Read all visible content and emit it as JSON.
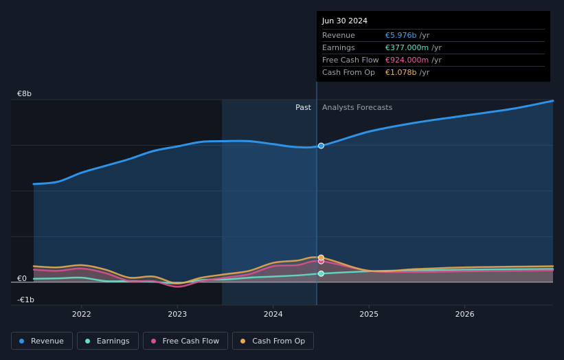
{
  "tooltip": {
    "date": "Jun 30 2024",
    "rows": [
      {
        "label": "Revenue",
        "value": "€5.976b",
        "unit": "/yr",
        "color": "#4aa3f0"
      },
      {
        "label": "Earnings",
        "value": "€377.000m",
        "unit": "/yr",
        "color": "#5fe0c8"
      },
      {
        "label": "Free Cash Flow",
        "value": "€924.000m",
        "unit": "/yr",
        "color": "#ef5fa0"
      },
      {
        "label": "Cash From Op",
        "value": "€1.078b",
        "unit": "/yr",
        "color": "#f2b45e"
      }
    ]
  },
  "labels": {
    "past": "Past",
    "forecast": "Analysts Forecasts"
  },
  "legend": [
    {
      "label": "Revenue",
      "color": "#2e93e6"
    },
    {
      "label": "Earnings",
      "color": "#5fe0c8"
    },
    {
      "label": "Free Cash Flow",
      "color": "#d9508f"
    },
    {
      "label": "Cash From Op",
      "color": "#e9a74f"
    }
  ],
  "chart_data": {
    "type": "line",
    "title": "",
    "xlabel": "",
    "ylabel": "",
    "ylim": [
      -1,
      8
    ],
    "y_ticks": [
      {
        "v": 8,
        "label": "€8b"
      },
      {
        "v": 0,
        "label": "€0"
      },
      {
        "v": -1,
        "label": "-€1b"
      }
    ],
    "x_ticks": [
      {
        "v": 2022,
        "label": "2022"
      },
      {
        "v": 2023,
        "label": "2023"
      },
      {
        "v": 2024,
        "label": "2024"
      },
      {
        "v": 2025,
        "label": "2025"
      },
      {
        "v": 2026,
        "label": "2026"
      }
    ],
    "xlim": [
      2021.25,
      2026.92
    ],
    "past_start": 2023.5,
    "current": 2024.5,
    "series": [
      {
        "name": "Revenue",
        "color": "#2e93e6",
        "x": [
          2021.5,
          2021.75,
          2022.0,
          2022.25,
          2022.5,
          2022.75,
          2023.0,
          2023.25,
          2023.5,
          2023.75,
          2024.0,
          2024.25,
          2024.5,
          2025.0,
          2025.5,
          2026.0,
          2026.5,
          2026.92
        ],
        "y": [
          4.3,
          4.4,
          4.8,
          5.1,
          5.4,
          5.75,
          5.95,
          6.15,
          6.18,
          6.18,
          6.05,
          5.92,
          5.98,
          6.6,
          7.0,
          7.3,
          7.6,
          7.95
        ]
      },
      {
        "name": "Earnings",
        "color": "#5fe0c8",
        "x": [
          2021.5,
          2021.75,
          2022.0,
          2022.25,
          2022.5,
          2022.75,
          2023.0,
          2023.25,
          2023.5,
          2023.75,
          2024.0,
          2024.25,
          2024.5,
          2025.0,
          2025.5,
          2026.0,
          2026.5,
          2026.92
        ],
        "y": [
          0.15,
          0.17,
          0.2,
          0.05,
          0.05,
          0.02,
          -0.05,
          0.1,
          0.12,
          0.2,
          0.25,
          0.3,
          0.377,
          0.48,
          0.52,
          0.55,
          0.57,
          0.58
        ]
      },
      {
        "name": "Free Cash Flow",
        "color": "#d9508f",
        "x": [
          2021.5,
          2021.75,
          2022.0,
          2022.25,
          2022.5,
          2022.75,
          2023.0,
          2023.25,
          2023.5,
          2023.75,
          2024.0,
          2024.25,
          2024.5,
          2025.0,
          2025.5,
          2026.0,
          2026.5,
          2026.92
        ],
        "y": [
          0.55,
          0.5,
          0.6,
          0.4,
          0.05,
          0.05,
          -0.2,
          0.05,
          0.2,
          0.35,
          0.7,
          0.75,
          0.924,
          0.5,
          0.45,
          0.48,
          0.5,
          0.52
        ]
      },
      {
        "name": "Cash From Op",
        "color": "#e9a74f",
        "x": [
          2021.5,
          2021.75,
          2022.0,
          2022.25,
          2022.5,
          2022.75,
          2023.0,
          2023.25,
          2023.5,
          2023.75,
          2024.0,
          2024.25,
          2024.5,
          2025.0,
          2025.5,
          2026.0,
          2026.5,
          2026.92
        ],
        "y": [
          0.7,
          0.65,
          0.75,
          0.55,
          0.2,
          0.25,
          -0.05,
          0.2,
          0.35,
          0.5,
          0.85,
          0.95,
          1.078,
          0.5,
          0.58,
          0.65,
          0.68,
          0.7
        ]
      }
    ]
  }
}
